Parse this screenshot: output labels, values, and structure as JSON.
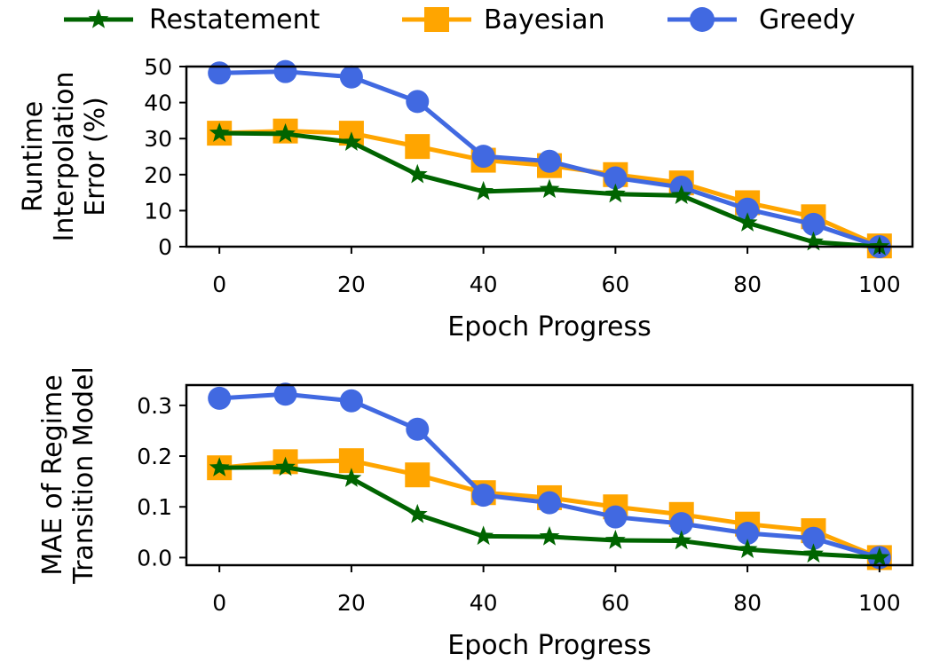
{
  "legend": [
    {
      "label": "Restatement",
      "color": "#006400",
      "marker": "star"
    },
    {
      "label": "Bayesian",
      "color": "#FFA500",
      "marker": "square"
    },
    {
      "label": "Greedy",
      "color": "#4169E1",
      "marker": "circle"
    }
  ],
  "chart_data": [
    {
      "type": "line",
      "title": "",
      "xlabel": "Epoch Progress",
      "ylabel_lines": [
        "Runtime",
        "Interpolation",
        "Error (%)"
      ],
      "xlim": [
        -5,
        105
      ],
      "ylim": [
        0,
        50
      ],
      "xticks": [
        0,
        20,
        40,
        60,
        80,
        100
      ],
      "yticks": [
        0,
        10,
        20,
        30,
        40,
        50
      ],
      "ytick_labels": [
        "0",
        "10",
        "20",
        "30",
        "40",
        "50"
      ],
      "x": [
        0,
        10,
        20,
        30,
        40,
        50,
        60,
        70,
        80,
        90,
        100
      ],
      "series": [
        {
          "name": "Restatement",
          "values": [
            31.5,
            31.3,
            29.0,
            20.0,
            15.3,
            15.9,
            14.6,
            14.2,
            6.6,
            1.3,
            0.0
          ]
        },
        {
          "name": "Bayesian",
          "values": [
            31.5,
            32.1,
            31.5,
            27.8,
            24.0,
            22.5,
            20.0,
            17.7,
            12.2,
            8.3,
            0.2
          ]
        },
        {
          "name": "Greedy",
          "values": [
            48.2,
            48.6,
            47.1,
            40.3,
            25.1,
            23.7,
            19.1,
            16.5,
            10.4,
            6.2,
            0.0
          ]
        }
      ]
    },
    {
      "type": "line",
      "title": "",
      "xlabel": "Epoch Progress",
      "ylabel_lines": [
        "MAE of Regime",
        "Transition Model"
      ],
      "xlim": [
        -5,
        105
      ],
      "ylim": [
        -0.015,
        0.34
      ],
      "xticks": [
        0,
        20,
        40,
        60,
        80,
        100
      ],
      "yticks": [
        0.0,
        0.1,
        0.2,
        0.3
      ],
      "ytick_labels": [
        "0.0",
        "0.1",
        "0.2",
        "0.3"
      ],
      "x": [
        0,
        10,
        20,
        30,
        40,
        50,
        60,
        70,
        80,
        90,
        100
      ],
      "series": [
        {
          "name": "Restatement",
          "values": [
            0.177,
            0.178,
            0.156,
            0.085,
            0.042,
            0.041,
            0.034,
            0.033,
            0.016,
            0.007,
            0.0
          ]
        },
        {
          "name": "Bayesian",
          "values": [
            0.177,
            0.189,
            0.191,
            0.163,
            0.128,
            0.118,
            0.1,
            0.085,
            0.066,
            0.053,
            0.0
          ]
        },
        {
          "name": "Greedy",
          "values": [
            0.314,
            0.322,
            0.309,
            0.253,
            0.123,
            0.108,
            0.08,
            0.067,
            0.048,
            0.038,
            0.0
          ]
        }
      ]
    }
  ]
}
